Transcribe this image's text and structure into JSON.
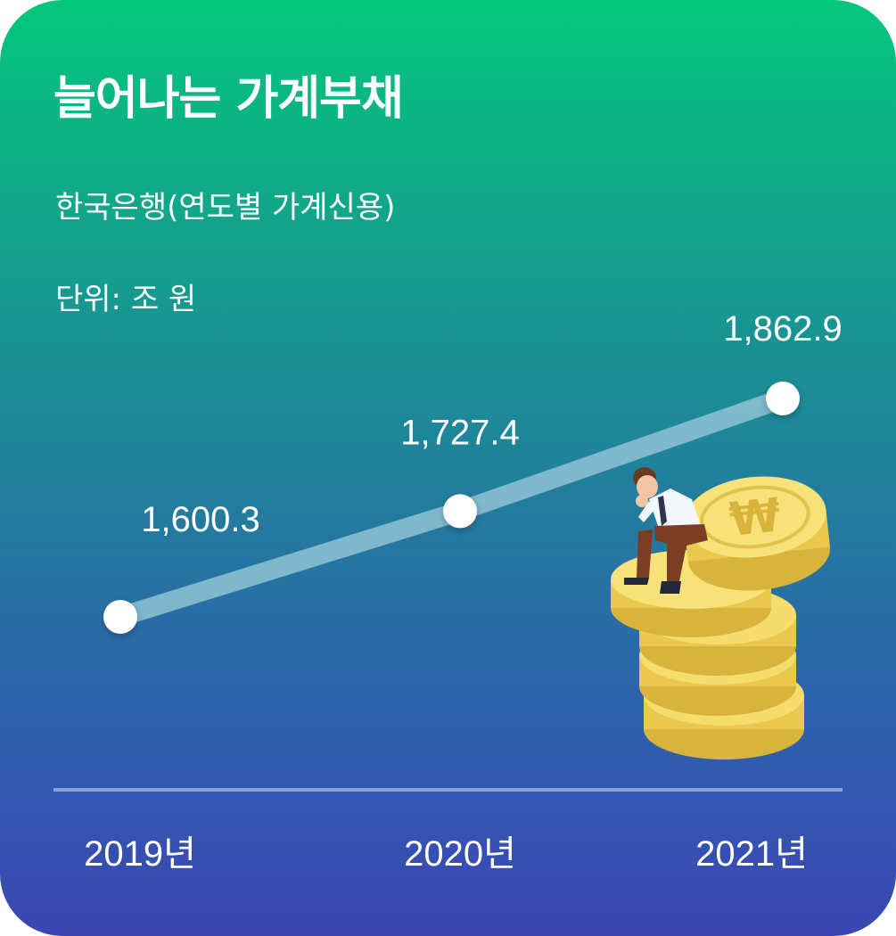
{
  "colors": {
    "line": "#8fc3d4",
    "point": "#ffffff",
    "coin": "#f2d55f",
    "coin_edge": "#d9b43d"
  },
  "chart_data": {
    "type": "line",
    "title": "늘어나는 가계부채",
    "subtitle": "한국은행(연도별 가계신용)",
    "unit": "단위: 조 원",
    "categories": [
      "2019년",
      "2020년",
      "2021년"
    ],
    "values": [
      1600.3,
      1727.4,
      1862.9
    ],
    "value_labels": [
      "1,600.3",
      "1,727.4",
      "1,862.9"
    ],
    "grid": false,
    "legend": "none"
  },
  "illustration": {
    "icon": "person-on-coins-icon",
    "coin_symbol": "₩"
  }
}
